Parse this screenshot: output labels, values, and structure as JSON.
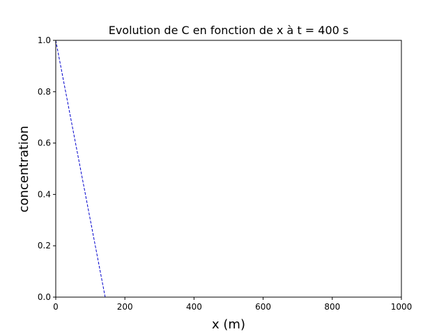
{
  "chart_data": {
    "type": "line",
    "title": "Evolution de C en fonction de x à t = 400 s",
    "xlabel": "x (m)",
    "ylabel": "concentration",
    "xlim": [
      0,
      1000
    ],
    "ylim": [
      0,
      1.0
    ],
    "x_ticks": [
      "0",
      "200",
      "400",
      "600",
      "800",
      "1000"
    ],
    "y_ticks": [
      "0.0",
      "0.2",
      "0.4",
      "0.6",
      "0.8",
      "1.0"
    ],
    "grid": false,
    "series": [
      {
        "style": "dashed",
        "color": "#0000cc",
        "x": [
          0,
          143,
          1000
        ],
        "y": [
          1.0,
          0.0,
          0.0
        ]
      }
    ]
  }
}
